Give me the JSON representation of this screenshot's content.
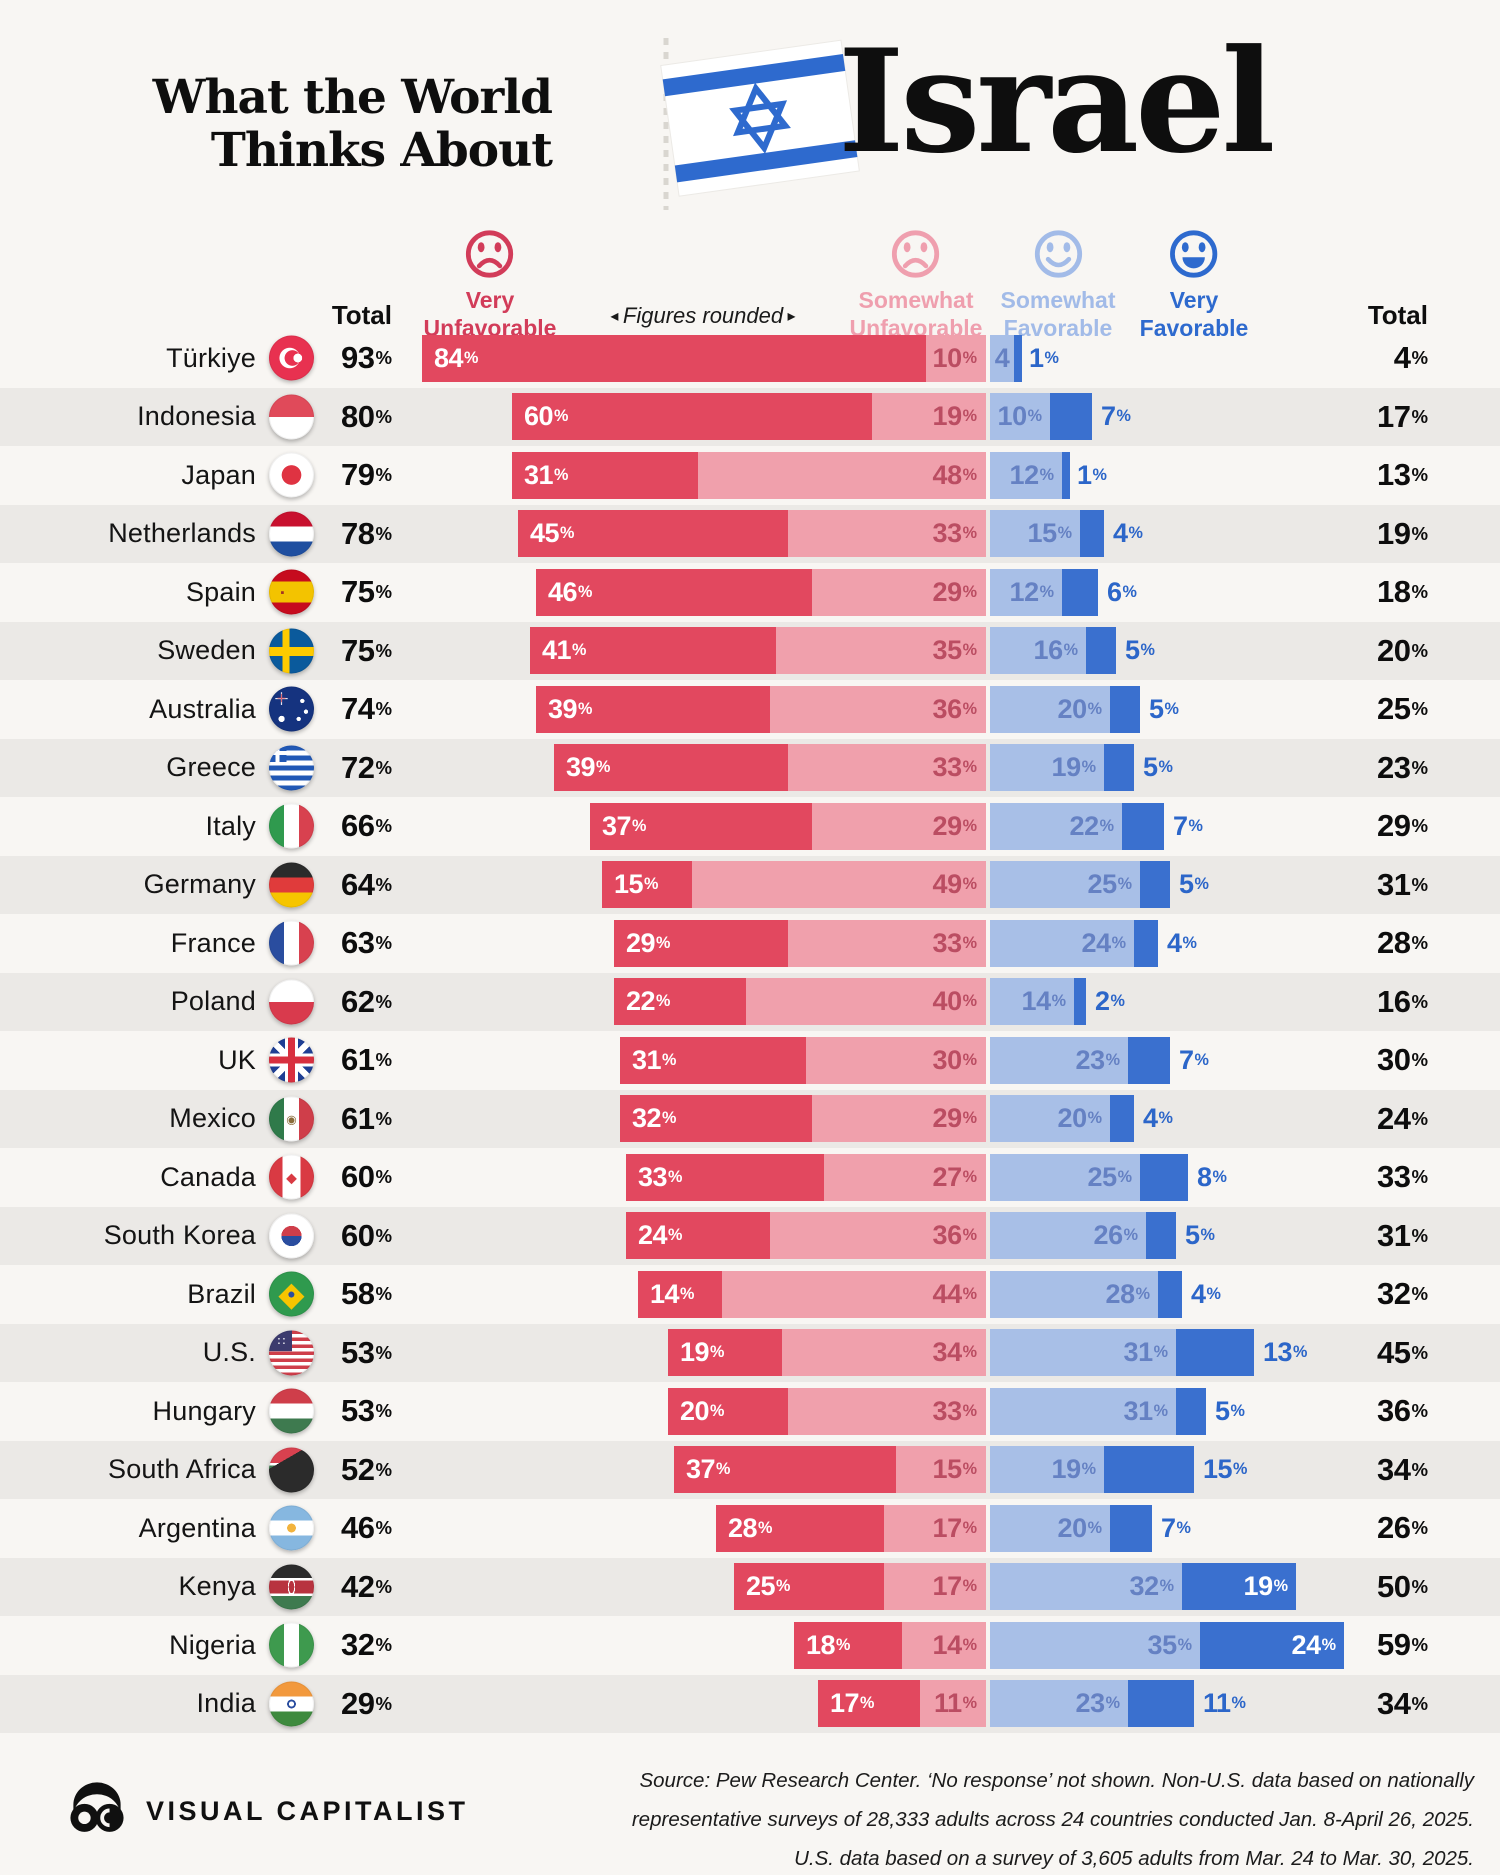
{
  "header": {
    "title_line1": "What the World",
    "title_line2": "Thinks About",
    "subject": "Israel"
  },
  "legend": {
    "left_total_label": "Total",
    "right_total_label": "Total",
    "note": "Figures rounded",
    "items": [
      {
        "line1": "Very",
        "line2": "Unfavorable",
        "face": "frown",
        "color": "#d23c59"
      },
      {
        "line1": "Somewhat",
        "line2": "Unfavorable",
        "face": "frown",
        "color": "#ef9fae"
      },
      {
        "line1": "Somewhat",
        "line2": "Favorable",
        "face": "smile",
        "color": "#a2bbe8"
      },
      {
        "line1": "Very",
        "line2": "Favorable",
        "face": "big-smile",
        "color": "#2e6ace"
      }
    ]
  },
  "colors": {
    "very_unfavorable": "#e2485f",
    "somewhat_unfavorable": "#f0a0ac",
    "somewhat_favorable": "#a8bfe7",
    "very_favorable": "#3a70cf",
    "su_label_ink": "#bb4d62",
    "sf_label_ink": "#6581c3",
    "vf_label_ink": "#2c66c9",
    "row_stripe": "#ebe9e6",
    "background": "#f8f6f3"
  },
  "chart_data": {
    "type": "bar",
    "variant": "diverging-stacked-horizontal",
    "unit": "%",
    "note": "Figures rounded",
    "series_names": [
      "Very Unfavorable",
      "Somewhat Unfavorable",
      "Somewhat Favorable",
      "Very Favorable"
    ],
    "rows": [
      {
        "country": "Türkiye",
        "flag": "tr",
        "total_unfavorable": 93,
        "very_unfavorable": 84,
        "somewhat_unfavorable": 10,
        "somewhat_favorable": 4,
        "very_favorable": 1,
        "total_favorable": 4
      },
      {
        "country": "Indonesia",
        "flag": "id",
        "total_unfavorable": 80,
        "very_unfavorable": 60,
        "somewhat_unfavorable": 19,
        "somewhat_favorable": 10,
        "very_favorable": 7,
        "total_favorable": 17
      },
      {
        "country": "Japan",
        "flag": "jp",
        "total_unfavorable": 79,
        "very_unfavorable": 31,
        "somewhat_unfavorable": 48,
        "somewhat_favorable": 12,
        "very_favorable": 1,
        "total_favorable": 13
      },
      {
        "country": "Netherlands",
        "flag": "nl",
        "total_unfavorable": 78,
        "very_unfavorable": 45,
        "somewhat_unfavorable": 33,
        "somewhat_favorable": 15,
        "very_favorable": 4,
        "total_favorable": 19
      },
      {
        "country": "Spain",
        "flag": "es",
        "total_unfavorable": 75,
        "very_unfavorable": 46,
        "somewhat_unfavorable": 29,
        "somewhat_favorable": 12,
        "very_favorable": 6,
        "total_favorable": 18
      },
      {
        "country": "Sweden",
        "flag": "se",
        "total_unfavorable": 75,
        "very_unfavorable": 41,
        "somewhat_unfavorable": 35,
        "somewhat_favorable": 16,
        "very_favorable": 5,
        "total_favorable": 20
      },
      {
        "country": "Australia",
        "flag": "au",
        "total_unfavorable": 74,
        "very_unfavorable": 39,
        "somewhat_unfavorable": 36,
        "somewhat_favorable": 20,
        "very_favorable": 5,
        "total_favorable": 25
      },
      {
        "country": "Greece",
        "flag": "gr",
        "total_unfavorable": 72,
        "very_unfavorable": 39,
        "somewhat_unfavorable": 33,
        "somewhat_favorable": 19,
        "very_favorable": 5,
        "total_favorable": 23
      },
      {
        "country": "Italy",
        "flag": "it",
        "total_unfavorable": 66,
        "very_unfavorable": 37,
        "somewhat_unfavorable": 29,
        "somewhat_favorable": 22,
        "very_favorable": 7,
        "total_favorable": 29
      },
      {
        "country": "Germany",
        "flag": "de",
        "total_unfavorable": 64,
        "very_unfavorable": 15,
        "somewhat_unfavorable": 49,
        "somewhat_favorable": 25,
        "very_favorable": 5,
        "total_favorable": 31
      },
      {
        "country": "France",
        "flag": "fr",
        "total_unfavorable": 63,
        "very_unfavorable": 29,
        "somewhat_unfavorable": 33,
        "somewhat_favorable": 24,
        "very_favorable": 4,
        "total_favorable": 28
      },
      {
        "country": "Poland",
        "flag": "pl",
        "total_unfavorable": 62,
        "very_unfavorable": 22,
        "somewhat_unfavorable": 40,
        "somewhat_favorable": 14,
        "very_favorable": 2,
        "total_favorable": 16
      },
      {
        "country": "UK",
        "flag": "gb",
        "total_unfavorable": 61,
        "very_unfavorable": 31,
        "somewhat_unfavorable": 30,
        "somewhat_favorable": 23,
        "very_favorable": 7,
        "total_favorable": 30
      },
      {
        "country": "Mexico",
        "flag": "mx",
        "total_unfavorable": 61,
        "very_unfavorable": 32,
        "somewhat_unfavorable": 29,
        "somewhat_favorable": 20,
        "very_favorable": 4,
        "total_favorable": 24
      },
      {
        "country": "Canada",
        "flag": "ca",
        "total_unfavorable": 60,
        "very_unfavorable": 33,
        "somewhat_unfavorable": 27,
        "somewhat_favorable": 25,
        "very_favorable": 8,
        "total_favorable": 33
      },
      {
        "country": "South Korea",
        "flag": "kr",
        "total_unfavorable": 60,
        "very_unfavorable": 24,
        "somewhat_unfavorable": 36,
        "somewhat_favorable": 26,
        "very_favorable": 5,
        "total_favorable": 31
      },
      {
        "country": "Brazil",
        "flag": "br",
        "total_unfavorable": 58,
        "very_unfavorable": 14,
        "somewhat_unfavorable": 44,
        "somewhat_favorable": 28,
        "very_favorable": 4,
        "total_favorable": 32
      },
      {
        "country": "U.S.",
        "flag": "us",
        "total_unfavorable": 53,
        "very_unfavorable": 19,
        "somewhat_unfavorable": 34,
        "somewhat_favorable": 31,
        "very_favorable": 13,
        "total_favorable": 45
      },
      {
        "country": "Hungary",
        "flag": "hu",
        "total_unfavorable": 53,
        "very_unfavorable": 20,
        "somewhat_unfavorable": 33,
        "somewhat_favorable": 31,
        "very_favorable": 5,
        "total_favorable": 36
      },
      {
        "country": "South Africa",
        "flag": "za",
        "total_unfavorable": 52,
        "very_unfavorable": 37,
        "somewhat_unfavorable": 15,
        "somewhat_favorable": 19,
        "very_favorable": 15,
        "total_favorable": 34
      },
      {
        "country": "Argentina",
        "flag": "ar",
        "total_unfavorable": 46,
        "very_unfavorable": 28,
        "somewhat_unfavorable": 17,
        "somewhat_favorable": 20,
        "very_favorable": 7,
        "total_favorable": 26
      },
      {
        "country": "Kenya",
        "flag": "ke",
        "total_unfavorable": 42,
        "very_unfavorable": 25,
        "somewhat_unfavorable": 17,
        "somewhat_favorable": 32,
        "very_favorable": 19,
        "total_favorable": 50
      },
      {
        "country": "Nigeria",
        "flag": "ng",
        "total_unfavorable": 32,
        "very_unfavorable": 18,
        "somewhat_unfavorable": 14,
        "somewhat_favorable": 35,
        "very_favorable": 24,
        "total_favorable": 59
      },
      {
        "country": "India",
        "flag": "in",
        "total_unfavorable": 29,
        "very_unfavorable": 17,
        "somewhat_unfavorable": 11,
        "somewhat_favorable": 23,
        "very_favorable": 11,
        "total_favorable": 34
      }
    ]
  },
  "footer": {
    "brand": "VISUAL CAPITALIST",
    "source_lines": [
      "Source: Pew Research Center. ‘No response’ not shown. Non-U.S. data based on nationally",
      "representative surveys of 28,333 adults across 24 countries conducted Jan. 8-April 26, 2025.",
      "U.S. data based on a survey of 3,605 adults from Mar. 24 to Mar. 30, 2025."
    ]
  }
}
